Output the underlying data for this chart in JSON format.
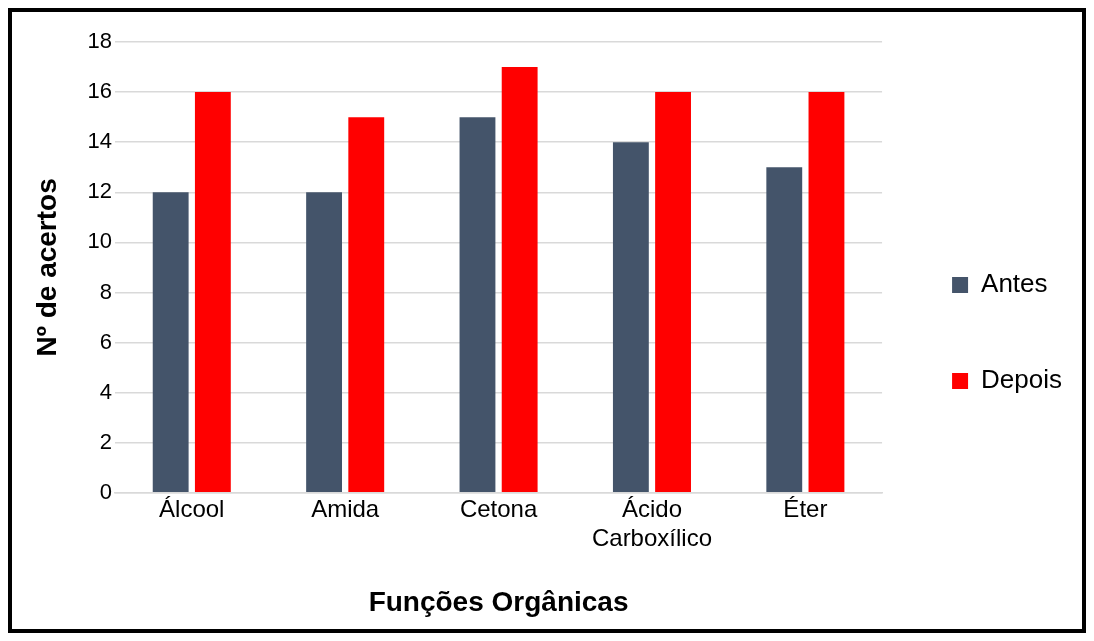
{
  "chart_data": {
    "type": "bar",
    "xlabel": "Funções Orgânicas",
    "ylabel": "Nº de acertos",
    "categories": [
      "Álcool",
      "Amida",
      "Cetona",
      "Ácido Carboxílico",
      "Éter"
    ],
    "series": [
      {
        "name": "Antes",
        "color": "#44546a",
        "values": [
          12,
          12,
          15,
          14,
          13
        ]
      },
      {
        "name": "Depois",
        "color": "#ff0000",
        "values": [
          16,
          15,
          17,
          16,
          16
        ]
      }
    ],
    "ylim": [
      0,
      18
    ],
    "yticks": [
      0,
      2,
      4,
      6,
      8,
      10,
      12,
      14,
      16,
      18
    ],
    "grid": "y",
    "legend": "right"
  }
}
